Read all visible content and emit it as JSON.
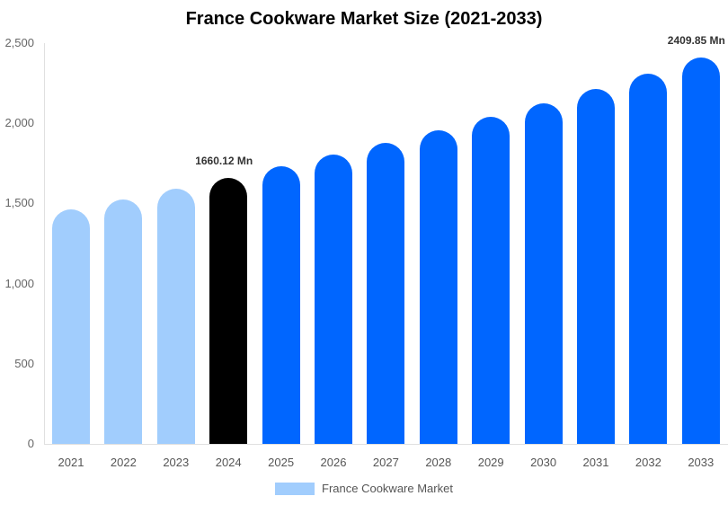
{
  "chart_data": {
    "type": "bar",
    "title": "France Cookware Market Size (2021-2033)",
    "xlabel": "",
    "ylabel": "",
    "ylim": [
      0,
      2500
    ],
    "yticks": [
      0,
      500,
      1000,
      1500,
      2000,
      2500
    ],
    "ytick_labels": [
      "0",
      "500",
      "1,000",
      "1,500",
      "2,000",
      "2,500"
    ],
    "categories": [
      "2021",
      "2022",
      "2023",
      "2024",
      "2025",
      "2026",
      "2027",
      "2028",
      "2029",
      "2030",
      "2031",
      "2032",
      "2033"
    ],
    "series": [
      {
        "name": "France Cookware Market",
        "values": [
          1463,
          1525,
          1592,
          1660.12,
          1732,
          1805,
          1878,
          1956,
          2040,
          2124,
          2214,
          2309,
          2409.85
        ]
      }
    ],
    "bar_colors": [
      "#a1cdfd",
      "#a1cdfd",
      "#a1cdfd",
      "#000000",
      "#0066ff",
      "#0066ff",
      "#0066ff",
      "#0066ff",
      "#0066ff",
      "#0066ff",
      "#0066ff",
      "#0066ff",
      "#0066ff"
    ],
    "annotations": [
      {
        "category": "2024",
        "text": "1660.12 Mn"
      },
      {
        "category": "2033",
        "text": "2409.85 Mn"
      }
    ],
    "legend": {
      "position": "bottom",
      "entries": [
        {
          "label": "France Cookware Market",
          "color": "#a1cdfd"
        }
      ]
    },
    "grid": false
  }
}
